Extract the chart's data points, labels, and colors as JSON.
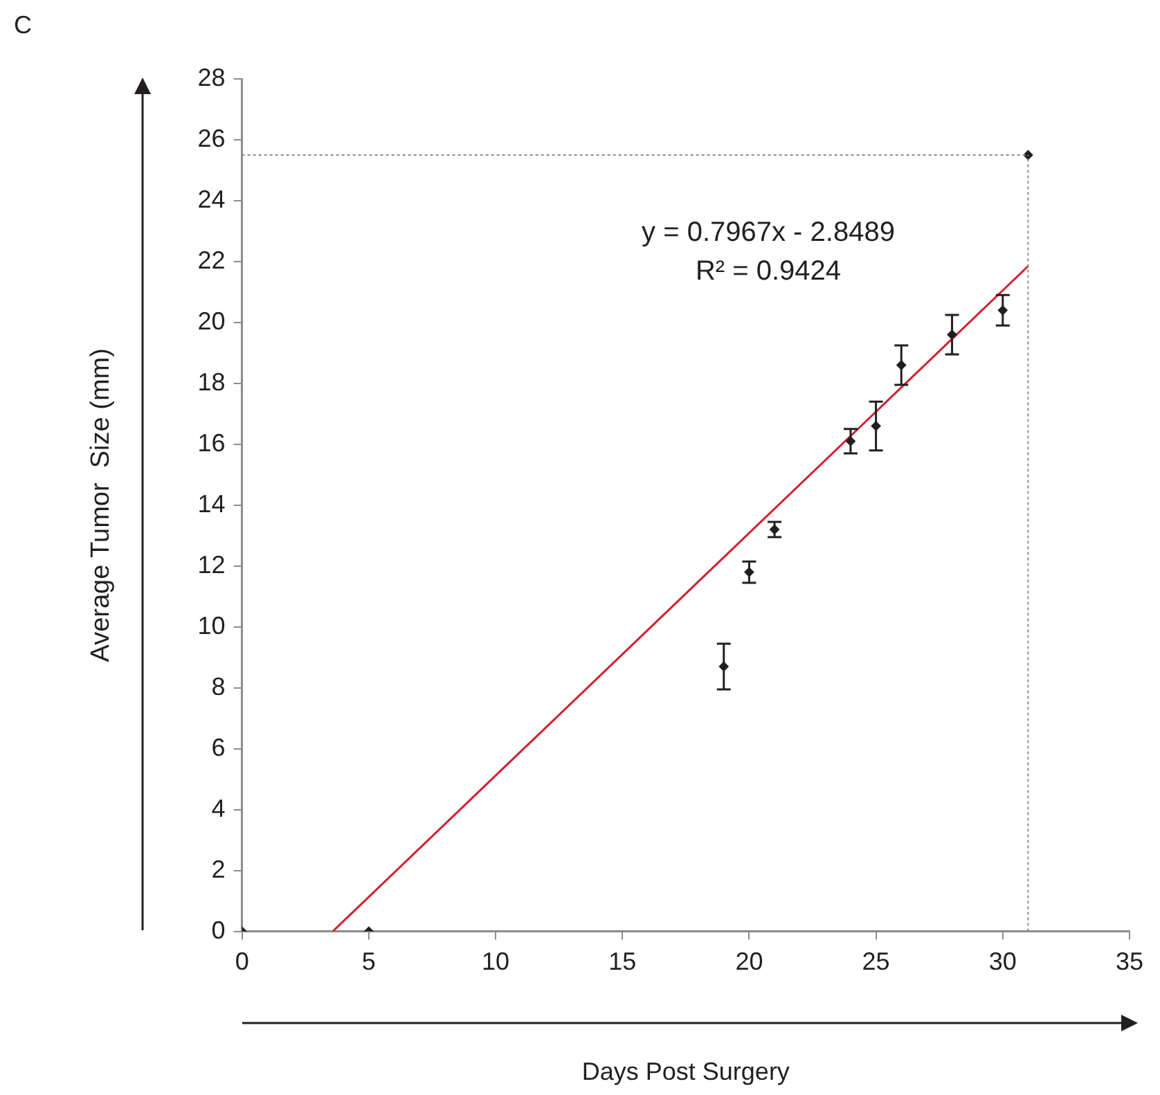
{
  "chart_data": {
    "type": "scatter",
    "xlabel": "Days Post Surgery",
    "ylabel": "Average Tumor  Size (mm)",
    "annotations": [
      "C",
      "y = 0.7967x - 2.8489",
      "R² = 0.9424"
    ],
    "xlim": [
      0,
      35
    ],
    "xticks": [
      0,
      5,
      10,
      15,
      20,
      25,
      30,
      35
    ],
    "ylim": [
      0,
      28
    ],
    "yticks": [
      0,
      2,
      4,
      6,
      8,
      10,
      12,
      14,
      16,
      18,
      20,
      22,
      24,
      26,
      28
    ],
    "grid": false,
    "legend": false,
    "series": [
      {
        "marker": "diamond",
        "color": "#231f20",
        "x": [
          0,
          5,
          19,
          20,
          21,
          24,
          25,
          26,
          28,
          30,
          31
        ],
        "values": [
          0,
          0,
          8.7,
          11.8,
          13.2,
          16.1,
          16.6,
          18.6,
          19.6,
          20.4,
          25.5
        ],
        "errors": [
          null,
          null,
          0.75,
          0.35,
          0.25,
          0.4,
          0.8,
          0.65,
          0.65,
          0.5,
          null
        ]
      },
      {
        "type": "line",
        "color": "#d0202e",
        "x": [
          3.58,
          31
        ],
        "values": [
          0,
          21.85
        ]
      }
    ],
    "ref_lines": [
      {
        "axis": "y",
        "value": 25.5,
        "color": "#8c8c8c",
        "line_style": "dotted"
      },
      {
        "axis": "x",
        "value": 31,
        "color": "#8c8c8c",
        "line_style": "dotted"
      }
    ]
  }
}
